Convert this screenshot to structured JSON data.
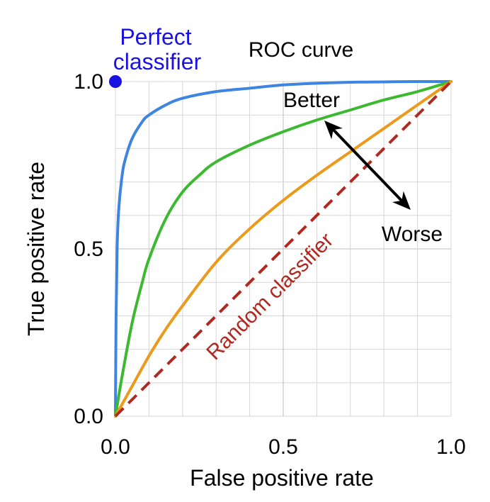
{
  "chart_data": {
    "type": "line",
    "title": "ROC curve",
    "xlabel": "False positive rate",
    "ylabel": "True positive rate",
    "xlim": [
      0,
      1
    ],
    "ylim": [
      0,
      1
    ],
    "grid": true,
    "x_ticks": [
      "0.0",
      "0.5",
      "1.0"
    ],
    "y_ticks": [
      "0.0",
      "0.5",
      "1.0"
    ],
    "series": [
      {
        "color": "#3d85e0",
        "x": [
          0,
          0.002,
          0.005,
          0.01,
          0.02,
          0.03,
          0.05,
          0.08,
          0.1,
          0.15,
          0.2,
          0.3,
          0.4,
          0.5,
          0.6,
          0.7,
          0.8,
          0.9,
          1.0
        ],
        "y": [
          0,
          0.3,
          0.5,
          0.62,
          0.72,
          0.77,
          0.83,
          0.88,
          0.9,
          0.93,
          0.95,
          0.97,
          0.98,
          0.99,
          0.995,
          0.998,
          0.999,
          1.0,
          1.0
        ]
      },
      {
        "color": "#3cb930",
        "x": [
          0,
          0.02,
          0.05,
          0.08,
          0.1,
          0.15,
          0.2,
          0.25,
          0.3,
          0.4,
          0.5,
          0.6,
          0.7,
          0.8,
          0.9,
          1.0
        ],
        "y": [
          0,
          0.12,
          0.28,
          0.4,
          0.47,
          0.59,
          0.67,
          0.72,
          0.76,
          0.81,
          0.85,
          0.885,
          0.915,
          0.945,
          0.97,
          1.0
        ]
      },
      {
        "color": "#eb9a1c",
        "x": [
          0,
          0.05,
          0.1,
          0.15,
          0.2,
          0.3,
          0.4,
          0.5,
          0.6,
          0.7,
          0.8,
          0.9,
          1.0
        ],
        "y": [
          0,
          0.09,
          0.18,
          0.26,
          0.33,
          0.46,
          0.56,
          0.645,
          0.72,
          0.79,
          0.86,
          0.93,
          1.0
        ]
      },
      {
        "name": "Random classifier",
        "color": "#b02820",
        "dashed": true,
        "x": [
          0,
          1
        ],
        "y": [
          0,
          1
        ]
      }
    ],
    "points": [
      {
        "name": "Perfect classifier",
        "x": 0,
        "y": 1,
        "color": "#1a12e0"
      }
    ],
    "annotations": {
      "perfect_line1": "Perfect",
      "perfect_line2": "classifier",
      "better": "Better",
      "worse": "Worse",
      "random": "Random classifier",
      "arrow_color": "#000000"
    }
  }
}
